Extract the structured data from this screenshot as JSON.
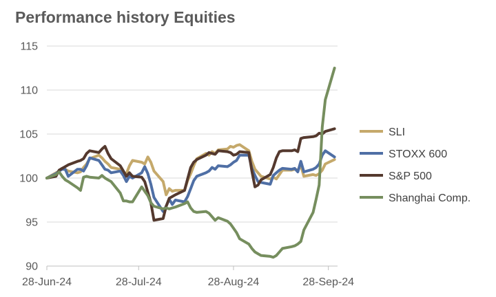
{
  "title": "Performance history Equities",
  "chart_data": {
    "type": "line",
    "title": "Performance history Equities",
    "xlabel": "",
    "ylabel": "",
    "x_tick_labels": [
      "28-Jun-24",
      "28-Jul-24",
      "28-Aug-24",
      "28-Sep-24"
    ],
    "x_ticks": [
      "2024-06-28",
      "2024-07-28",
      "2024-08-28",
      "2024-09-28"
    ],
    "xlim": [
      "2024-06-28",
      "2024-10-01"
    ],
    "y_tick_labels": [
      "90",
      "95",
      "100",
      "105",
      "110",
      "115"
    ],
    "ylim": [
      90,
      115
    ],
    "grid": "horizontal",
    "legend": "right",
    "x": [
      "2024-06-28",
      "2024-07-01",
      "2024-07-02",
      "2024-07-03",
      "2024-07-04",
      "2024-07-05",
      "2024-07-08",
      "2024-07-09",
      "2024-07-10",
      "2024-07-11",
      "2024-07-12",
      "2024-07-15",
      "2024-07-16",
      "2024-07-17",
      "2024-07-18",
      "2024-07-19",
      "2024-07-22",
      "2024-07-23",
      "2024-07-24",
      "2024-07-25",
      "2024-07-26",
      "2024-07-29",
      "2024-07-30",
      "2024-07-31",
      "2024-08-01",
      "2024-08-02",
      "2024-08-05",
      "2024-08-06",
      "2024-08-07",
      "2024-08-08",
      "2024-08-09",
      "2024-08-12",
      "2024-08-13",
      "2024-08-14",
      "2024-08-15",
      "2024-08-16",
      "2024-08-19",
      "2024-08-20",
      "2024-08-21",
      "2024-08-22",
      "2024-08-23",
      "2024-08-26",
      "2024-08-27",
      "2024-08-28",
      "2024-08-29",
      "2024-08-30",
      "2024-09-02",
      "2024-09-03",
      "2024-09-04",
      "2024-09-05",
      "2024-09-06",
      "2024-09-09",
      "2024-09-10",
      "2024-09-11",
      "2024-09-12",
      "2024-09-13",
      "2024-09-16",
      "2024-09-17",
      "2024-09-18",
      "2024-09-19",
      "2024-09-20",
      "2024-09-23",
      "2024-09-24",
      "2024-09-25",
      "2024-09-26",
      "2024-09-27",
      "2024-09-30"
    ],
    "series": [
      {
        "name": "SLI",
        "color": "#c5a96b",
        "values": [
          100.0,
          100.6,
          100.8,
          101.1,
          101.0,
          100.8,
          100.6,
          100.7,
          101.2,
          101.6,
          102.2,
          102.6,
          102.3,
          101.9,
          101.6,
          101.2,
          101.0,
          100.6,
          100.5,
          101.4,
          102.0,
          101.8,
          101.6,
          102.4,
          101.8,
          100.8,
          99.6,
          98.1,
          98.8,
          98.5,
          98.6,
          98.6,
          99.7,
          100.5,
          101.4,
          102.2,
          102.8,
          102.6,
          103.0,
          102.8,
          103.2,
          103.3,
          103.6,
          103.5,
          103.7,
          103.8,
          103.1,
          101.9,
          101.0,
          100.6,
          100.2,
          99.9,
          100.1,
          99.9,
          100.4,
          100.9,
          100.9,
          101.0,
          100.9,
          101.4,
          100.2,
          100.4,
          100.3,
          100.5,
          100.9,
          101.6,
          102.1
        ]
      },
      {
        "name": "STOXX 600",
        "color": "#4f6fa5",
        "values": [
          100.0,
          100.5,
          100.8,
          101.0,
          101.0,
          100.2,
          101.0,
          101.0,
          100.8,
          101.4,
          102.3,
          102.0,
          101.5,
          101.0,
          100.9,
          100.6,
          100.8,
          100.3,
          99.6,
          100.2,
          100.0,
          100.6,
          101.3,
          100.5,
          99.3,
          97.8,
          96.2,
          96.8,
          97.6,
          97.0,
          97.5,
          97.3,
          97.9,
          98.8,
          99.7,
          100.2,
          100.6,
          100.8,
          101.2,
          101.0,
          101.4,
          101.3,
          101.5,
          101.8,
          102.0,
          102.6,
          102.6,
          101.1,
          100.3,
          99.6,
          99.5,
          99.3,
          100.3,
          100.6,
          100.9,
          101.1,
          101.0,
          101.1,
          100.7,
          101.9,
          100.7,
          101.0,
          101.2,
          101.6,
          102.6,
          103.1,
          102.4
        ]
      },
      {
        "name": "S&P 500",
        "color": "#54392e",
        "values": [
          100.0,
          100.2,
          100.9,
          101.1,
          101.3,
          101.5,
          101.9,
          102.0,
          102.2,
          102.8,
          103.1,
          102.9,
          103.3,
          103.6,
          102.8,
          102.2,
          101.4,
          100.8,
          100.2,
          100.6,
          100.2,
          100.1,
          99.6,
          98.4,
          97.2,
          95.2,
          95.4,
          96.8,
          97.7,
          97.9,
          98.1,
          98.6,
          99.9,
          101.2,
          101.8,
          102.1,
          102.6,
          102.9,
          102.8,
          102.7,
          103.1,
          103.0,
          102.9,
          102.6,
          102.7,
          103.0,
          102.9,
          100.8,
          99.0,
          99.2,
          99.8,
          100.4,
          101.2,
          102.3,
          103.0,
          103.1,
          103.1,
          103.2,
          103.0,
          104.5,
          104.6,
          104.7,
          104.8,
          105.1,
          105.0,
          105.3,
          105.6
        ]
      },
      {
        "name": "Shanghai Comp.",
        "color": "#768e5e",
        "values": [
          100.0,
          100.4,
          100.7,
          100.2,
          99.8,
          99.6,
          98.9,
          98.6,
          100.1,
          100.2,
          100.1,
          100.0,
          100.3,
          100.0,
          99.8,
          99.6,
          98.3,
          97.4,
          97.4,
          97.3,
          97.3,
          99.0,
          98.5,
          98.0,
          97.2,
          96.8,
          96.5,
          96.6,
          96.5,
          96.6,
          96.7,
          97.1,
          97.3,
          96.6,
          96.2,
          96.1,
          96.2,
          96.0,
          95.6,
          95.2,
          95.5,
          95.1,
          94.8,
          94.3,
          93.8,
          93.1,
          92.5,
          92.0,
          91.6,
          91.4,
          91.2,
          91.1,
          91.0,
          91.2,
          91.6,
          92.0,
          92.2,
          92.3,
          92.5,
          92.8,
          94.1,
          96.1,
          97.6,
          99.2,
          105.8,
          108.9,
          112.5
        ]
      }
    ]
  }
}
